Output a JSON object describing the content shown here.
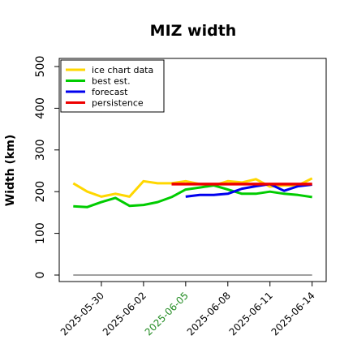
{
  "chart_data": {
    "type": "line",
    "title": "MIZ width",
    "xlabel": "",
    "ylabel": "Width (km)",
    "ylim": [
      0,
      500
    ],
    "yticks": [
      0,
      100,
      200,
      300,
      400,
      500
    ],
    "xlim": [
      "2025-05-27",
      "2025-06-15"
    ],
    "xticks": [
      {
        "date": "2025-05-30",
        "label": "2025-05-30",
        "color": "#000000"
      },
      {
        "date": "2025-06-02",
        "label": "2025-06-02",
        "color": "#000000"
      },
      {
        "date": "2025-06-05",
        "label": "2025-06-05",
        "color": "#228B22"
      },
      {
        "date": "2025-06-08",
        "label": "2025-06-08",
        "color": "#000000"
      },
      {
        "date": "2025-06-11",
        "label": "2025-06-11",
        "color": "#000000"
      },
      {
        "date": "2025-06-14",
        "label": "2025-06-14",
        "color": "#000000"
      }
    ],
    "grid": false,
    "legend": "top-left",
    "series": [
      {
        "name": "ice chart data",
        "color": "#FFD700",
        "x": [
          "2025-05-28",
          "2025-05-29",
          "2025-05-30",
          "2025-05-31",
          "2025-06-01",
          "2025-06-02",
          "2025-06-03",
          "2025-06-04",
          "2025-06-05",
          "2025-06-06",
          "2025-06-07",
          "2025-06-08",
          "2025-06-09",
          "2025-06-10",
          "2025-06-11",
          "2025-06-12",
          "2025-06-13",
          "2025-06-14"
        ],
        "values": [
          220,
          200,
          188,
          195,
          188,
          225,
          220,
          220,
          225,
          218,
          215,
          225,
          222,
          230,
          212,
          215,
          215,
          232
        ]
      },
      {
        "name": "best est.",
        "color": "#00CC00",
        "x": [
          "2025-05-28",
          "2025-05-29",
          "2025-05-30",
          "2025-05-31",
          "2025-06-01",
          "2025-06-02",
          "2025-06-03",
          "2025-06-04",
          "2025-06-05",
          "2025-06-06",
          "2025-06-07",
          "2025-06-08",
          "2025-06-09",
          "2025-06-10",
          "2025-06-11",
          "2025-06-12",
          "2025-06-13",
          "2025-06-14"
        ],
        "values": [
          165,
          163,
          175,
          185,
          166,
          168,
          175,
          187,
          205,
          210,
          215,
          205,
          195,
          195,
          200,
          195,
          192,
          187
        ]
      },
      {
        "name": "forecast",
        "color": "#0000EE",
        "x": [
          "2025-06-05",
          "2025-06-06",
          "2025-06-07",
          "2025-06-08",
          "2025-06-09",
          "2025-06-10",
          "2025-06-11",
          "2025-06-12",
          "2025-06-13",
          "2025-06-14"
        ],
        "values": [
          188,
          192,
          192,
          195,
          207,
          213,
          218,
          202,
          213,
          217
        ]
      },
      {
        "name": "persistence",
        "color": "#EE0000",
        "x": [
          "2025-06-04",
          "2025-06-14"
        ],
        "values": [
          218,
          218
        ]
      },
      {
        "name": "",
        "color": "#808080",
        "x": [
          "2025-05-28",
          "2025-06-14"
        ],
        "values": [
          0,
          0
        ]
      }
    ]
  }
}
